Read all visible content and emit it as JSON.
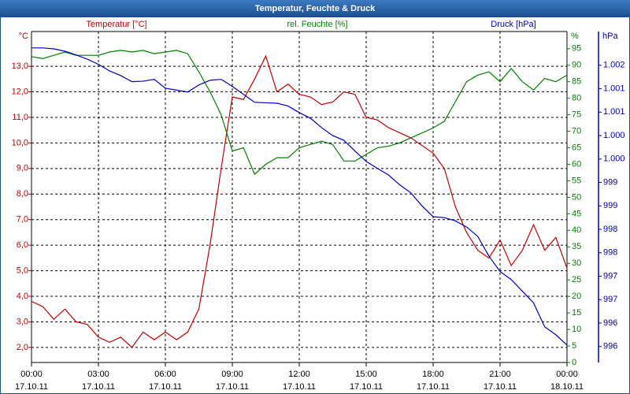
{
  "chart_data": {
    "type": "line",
    "title": "Temperatur, Feuchte & Druck",
    "x": [
      0,
      0.5,
      1,
      1.5,
      2,
      2.5,
      3,
      3.5,
      4,
      4.5,
      5,
      5.5,
      6,
      6.5,
      7,
      7.5,
      8,
      8.5,
      9,
      9.5,
      10,
      10.5,
      11,
      11.5,
      12,
      12.5,
      13,
      13.5,
      14,
      14.5,
      15,
      15.5,
      16,
      16.5,
      17,
      17.5,
      18,
      18.5,
      19,
      19.5,
      20,
      20.5,
      21,
      21.5,
      22,
      22.5,
      23,
      23.5,
      24
    ],
    "xlim": [
      0,
      24
    ],
    "xticks": [
      {
        "value": 0,
        "label": "00:00"
      },
      {
        "value": 3,
        "label": "03:00"
      },
      {
        "value": 6,
        "label": "06:00"
      },
      {
        "value": 9,
        "label": "09:00"
      },
      {
        "value": 12,
        "label": "12:00"
      },
      {
        "value": 15,
        "label": "15:00"
      },
      {
        "value": 18,
        "label": "18:00"
      },
      {
        "value": 21,
        "label": "21:00"
      },
      {
        "value": 24,
        "label": "00:00"
      }
    ],
    "xtick_dates": [
      "17.10.11",
      "17.10.11",
      "17.10.11",
      "17.10.11",
      "17.10.11",
      "17.10.11",
      "17.10.11",
      "17.10.11",
      "18.10.11"
    ],
    "y_label": "Temperatur [°C]",
    "y_unit": "°C",
    "ylim": [
      1.41,
      14.36
    ],
    "yticks": [
      {
        "value": 2,
        "label": "2,0"
      },
      {
        "value": 3,
        "label": "3,0"
      },
      {
        "value": 4,
        "label": "4,0"
      },
      {
        "value": 5,
        "label": "5,0"
      },
      {
        "value": 6,
        "label": "6,0"
      },
      {
        "value": 7,
        "label": "7,0"
      },
      {
        "value": 8,
        "label": "8,0"
      },
      {
        "value": 9,
        "label": "9,0"
      },
      {
        "value": 10,
        "label": "10,0"
      },
      {
        "value": 11,
        "label": "11,0"
      },
      {
        "value": 12,
        "label": "12,0"
      },
      {
        "value": 13,
        "label": "13,0"
      }
    ],
    "y2_label": "rel. Feuchte [%]",
    "y2_unit": "%",
    "y2lim": [
      0,
      100.2
    ],
    "y2ticks": [
      0,
      5,
      10,
      15,
      20,
      25,
      30,
      35,
      40,
      45,
      50,
      55,
      60,
      65,
      70,
      75,
      80,
      85,
      90,
      95
    ],
    "y3_label": "Druck [hPa]",
    "y3_unit": "hPa",
    "y3lim": [
      995.41,
      1002.47
    ],
    "y3ticks": [
      {
        "value": 995.75,
        "label": "996"
      },
      {
        "value": 996.25,
        "label": "996"
      },
      {
        "value": 996.75,
        "label": "997"
      },
      {
        "value": 997.25,
        "label": "997"
      },
      {
        "value": 997.75,
        "label": "998"
      },
      {
        "value": 998.25,
        "label": "998"
      },
      {
        "value": 998.75,
        "label": "999"
      },
      {
        "value": 999.25,
        "label": "999"
      },
      {
        "value": 999.75,
        "label": "1.000"
      },
      {
        "value": 1000.25,
        "label": "1.000"
      },
      {
        "value": 1000.75,
        "label": "1.001"
      },
      {
        "value": 1001.25,
        "label": "1.001"
      },
      {
        "value": 1001.75,
        "label": "1.002"
      }
    ],
    "grid": true,
    "series": [
      {
        "name": "Temperatur",
        "color": "#c00000",
        "axis": "y",
        "values": [
          3.8,
          3.6,
          3.1,
          3.5,
          3.0,
          2.9,
          2.4,
          2.2,
          2.4,
          2.0,
          2.6,
          2.3,
          2.6,
          2.3,
          2.6,
          3.5,
          6.0,
          9.0,
          11.8,
          11.7,
          12.5,
          13.4,
          12.0,
          12.3,
          11.9,
          11.8,
          11.5,
          11.6,
          12.0,
          11.9,
          11.0,
          10.9,
          10.6,
          10.4,
          10.2,
          9.9,
          9.6,
          9.0,
          7.5,
          6.5,
          5.8,
          5.5,
          6.2,
          5.2,
          5.8,
          6.8,
          5.8,
          6.3,
          5.1
        ]
      },
      {
        "name": "rel. Feuchte",
        "color": "#008000",
        "axis": "y2",
        "values": [
          92.6,
          92,
          93,
          94,
          93,
          93,
          93,
          94,
          94.5,
          94,
          94.5,
          93.5,
          94,
          94.5,
          93.5,
          88,
          82,
          75,
          64,
          65,
          57,
          60,
          62,
          62,
          65,
          66,
          67,
          66,
          61,
          61,
          63,
          65,
          65.5,
          66.5,
          68,
          69.5,
          71,
          73,
          79,
          85,
          87,
          88,
          85,
          89,
          85,
          82.5,
          86,
          85,
          87
        ]
      },
      {
        "name": "Druck",
        "color": "#0000c0",
        "axis": "y3",
        "values": [
          1002.12,
          1002.12,
          1002.1,
          1002.05,
          1001.97,
          1001.88,
          1001.77,
          1001.63,
          1001.53,
          1001.4,
          1001.41,
          1001.45,
          1001.26,
          1001.22,
          1001.18,
          1001.33,
          1001.43,
          1001.45,
          1001.3,
          1001.13,
          1000.96,
          1000.95,
          1000.94,
          1000.88,
          1000.74,
          1000.62,
          1000.42,
          1000.25,
          1000.15,
          999.92,
          999.7,
          999.55,
          999.41,
          999.2,
          999.03,
          998.75,
          998.52,
          998.5,
          998.43,
          998.3,
          998.1,
          997.68,
          997.35,
          997.18,
          996.93,
          996.68,
          996.17,
          996.0,
          995.78
        ]
      }
    ]
  }
}
